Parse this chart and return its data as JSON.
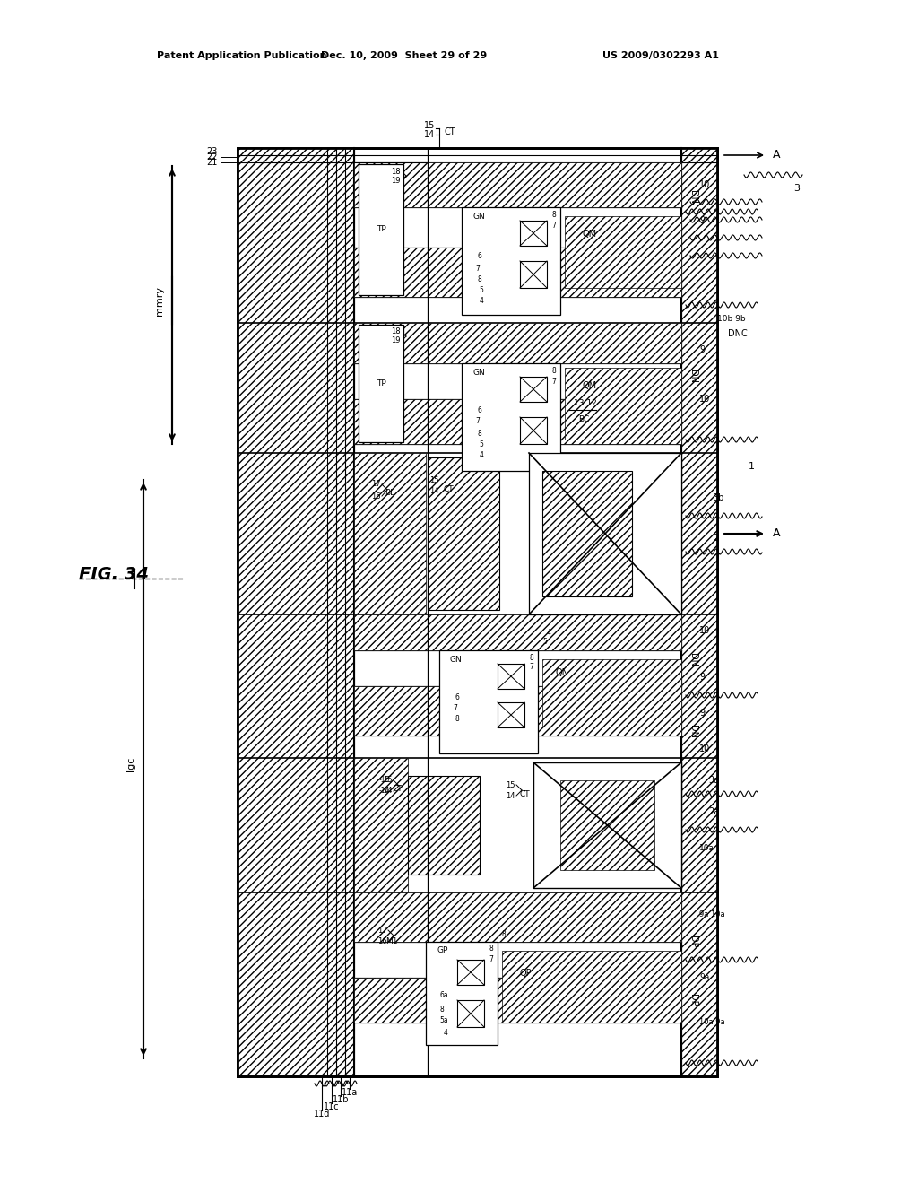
{
  "header_left": "Patent Application Publication",
  "header_mid": "Dec. 10, 2009  Sheet 29 of 29",
  "header_right": "US 2009/0302293 A1",
  "fig_label": "FIG. 34",
  "bg_color": "#ffffff"
}
